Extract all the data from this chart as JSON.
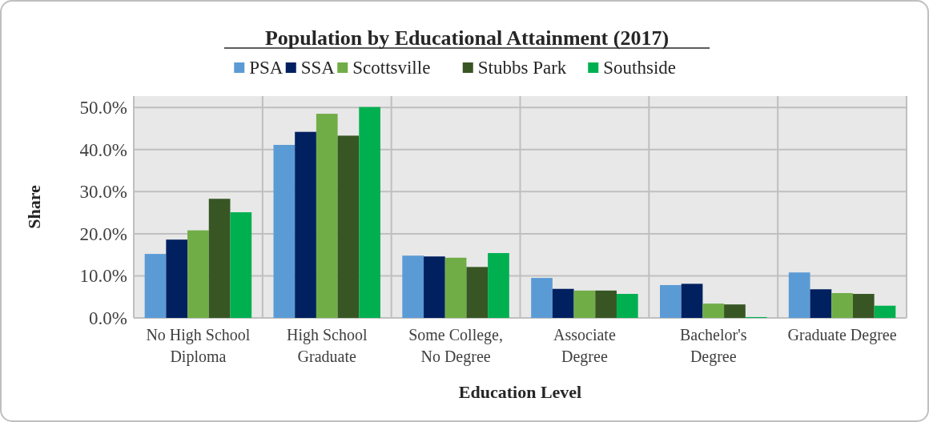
{
  "chart_data": {
    "type": "bar",
    "title": "Population by Educational Attainment (2017)",
    "xlabel": "Education Level",
    "ylabel": "Share",
    "categories": [
      "No High School Diploma",
      "High School Graduate",
      "Some College, No Degree",
      "Associate Degree",
      "Bachelor's Degree",
      "Graduate Degree"
    ],
    "series": [
      {
        "name": "PSA",
        "color": "#5b9bd5",
        "values": [
          15.2,
          41.1,
          14.8,
          9.5,
          7.8,
          10.8
        ]
      },
      {
        "name": "SSA",
        "color": "#002060",
        "values": [
          18.6,
          44.2,
          14.6,
          6.9,
          8.1,
          6.8
        ]
      },
      {
        "name": "Scottsville",
        "color": "#70ad47",
        "values": [
          20.8,
          48.5,
          14.3,
          6.5,
          3.4,
          5.9
        ]
      },
      {
        "name": "Stubbs Park",
        "color": "#375623",
        "values": [
          28.3,
          43.3,
          12.1,
          6.5,
          3.2,
          5.7
        ]
      },
      {
        "name": "Southside",
        "color": "#00b050",
        "values": [
          25.1,
          50.1,
          15.4,
          5.7,
          0.2,
          2.9
        ]
      }
    ],
    "ylim": [
      0,
      52.7
    ],
    "yticks": [
      {
        "value": 0,
        "label": "0.0%"
      },
      {
        "value": 10,
        "label": "10.0%"
      },
      {
        "value": 20,
        "label": "20.0%"
      },
      {
        "value": 30,
        "label": "30.0%"
      },
      {
        "value": 40,
        "label": "40.0%"
      },
      {
        "value": 50,
        "label": "50.0%"
      }
    ],
    "grid": true,
    "legend": "top"
  }
}
